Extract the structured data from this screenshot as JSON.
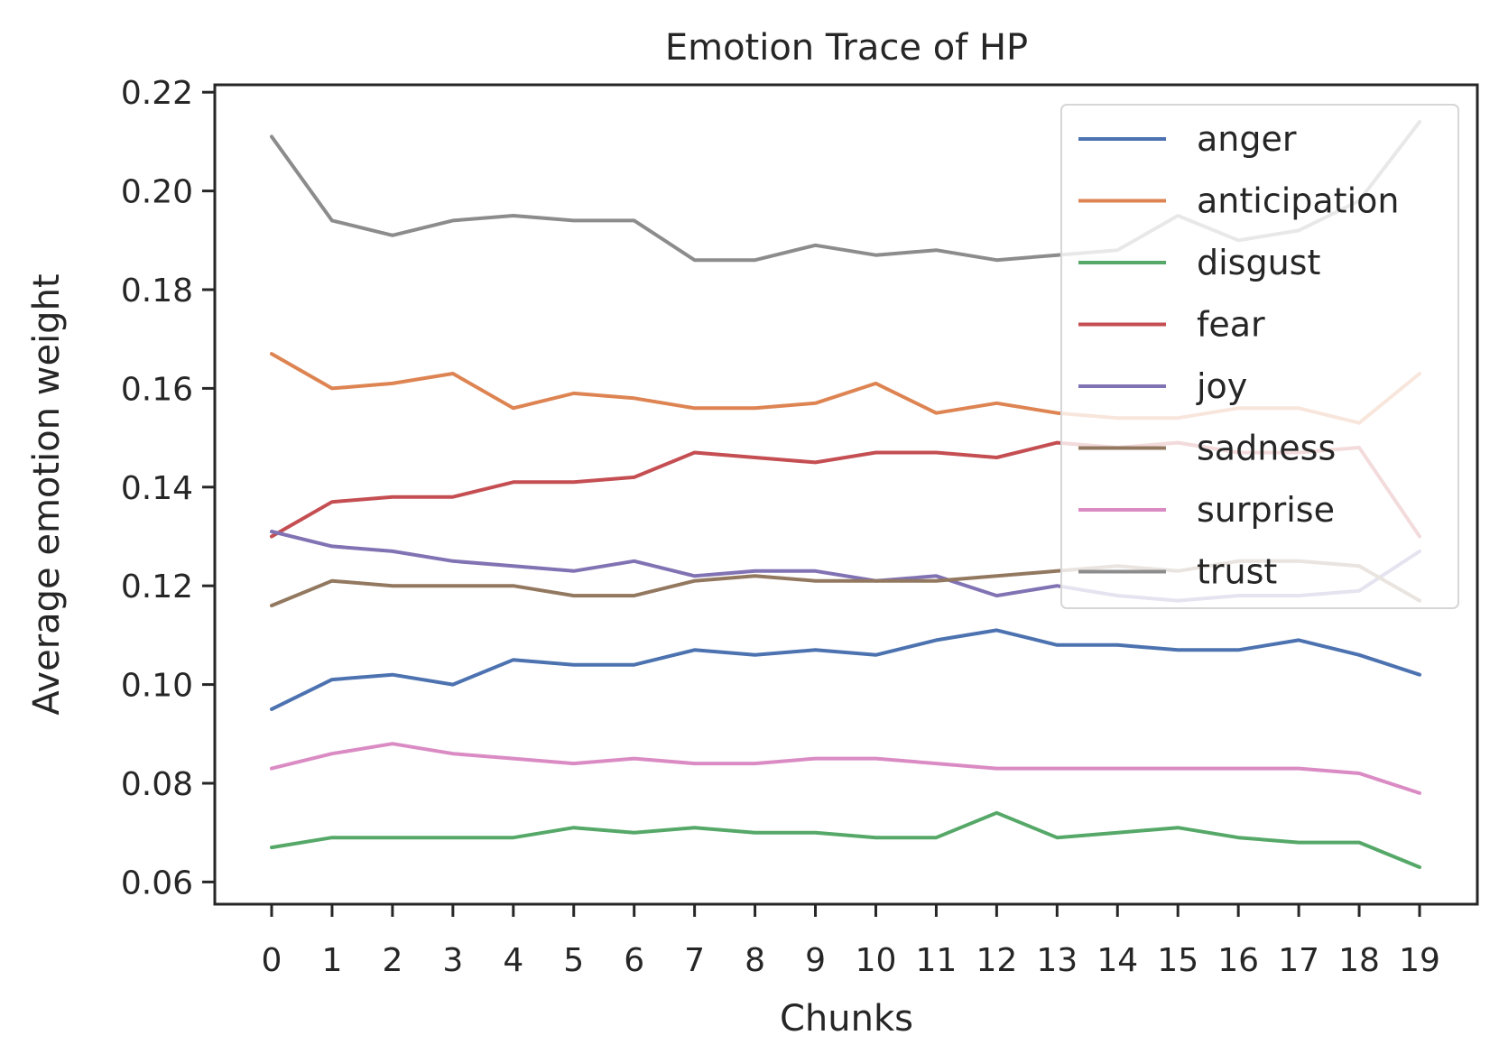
{
  "chart_data": {
    "type": "line",
    "title": "Emotion Trace of HP",
    "xlabel": "Chunks",
    "ylabel": "Average emotion weight",
    "x": [
      0,
      1,
      2,
      3,
      4,
      5,
      6,
      7,
      8,
      9,
      10,
      11,
      12,
      13,
      14,
      15,
      16,
      17,
      18,
      19
    ],
    "ylim": [
      0.0555,
      0.2215
    ],
    "yticks": [
      0.06,
      0.08,
      0.1,
      0.12,
      0.14,
      0.16,
      0.18,
      0.2,
      0.22
    ],
    "ytick_labels": [
      "0.06",
      "0.08",
      "0.10",
      "0.12",
      "0.14",
      "0.16",
      "0.18",
      "0.20",
      "0.22"
    ],
    "grid": false,
    "legend_position": "top-right",
    "series": [
      {
        "name": "anger",
        "color": "#4c72b0",
        "values": [
          0.095,
          0.101,
          0.102,
          0.1,
          0.105,
          0.104,
          0.104,
          0.107,
          0.106,
          0.107,
          0.106,
          0.109,
          0.111,
          0.108,
          0.108,
          0.107,
          0.107,
          0.109,
          0.106,
          0.102
        ]
      },
      {
        "name": "anticipation",
        "color": "#dd8452",
        "values": [
          0.167,
          0.16,
          0.161,
          0.163,
          0.156,
          0.159,
          0.158,
          0.156,
          0.156,
          0.157,
          0.161,
          0.155,
          0.157,
          0.155,
          0.154,
          0.154,
          0.156,
          0.156,
          0.153,
          0.163
        ]
      },
      {
        "name": "disgust",
        "color": "#55a868",
        "values": [
          0.067,
          0.069,
          0.069,
          0.069,
          0.069,
          0.071,
          0.07,
          0.071,
          0.07,
          0.07,
          0.069,
          0.069,
          0.074,
          0.069,
          0.07,
          0.071,
          0.069,
          0.068,
          0.068,
          0.063
        ]
      },
      {
        "name": "fear",
        "color": "#c44e52",
        "values": [
          0.13,
          0.137,
          0.138,
          0.138,
          0.141,
          0.141,
          0.142,
          0.147,
          0.146,
          0.145,
          0.147,
          0.147,
          0.146,
          0.149,
          0.148,
          0.149,
          0.147,
          0.147,
          0.148,
          0.13
        ]
      },
      {
        "name": "joy",
        "color": "#8172b3",
        "values": [
          0.131,
          0.128,
          0.127,
          0.125,
          0.124,
          0.123,
          0.125,
          0.122,
          0.123,
          0.123,
          0.121,
          0.122,
          0.118,
          0.12,
          0.118,
          0.117,
          0.118,
          0.118,
          0.119,
          0.127
        ]
      },
      {
        "name": "sadness",
        "color": "#937860",
        "values": [
          0.116,
          0.121,
          0.12,
          0.12,
          0.12,
          0.118,
          0.118,
          0.121,
          0.122,
          0.121,
          0.121,
          0.121,
          0.122,
          0.123,
          0.124,
          0.123,
          0.125,
          0.125,
          0.124,
          0.117
        ]
      },
      {
        "name": "surprise",
        "color": "#da8bc3",
        "values": [
          0.083,
          0.086,
          0.088,
          0.086,
          0.085,
          0.084,
          0.085,
          0.084,
          0.084,
          0.085,
          0.085,
          0.084,
          0.083,
          0.083,
          0.083,
          0.083,
          0.083,
          0.083,
          0.082,
          0.078
        ]
      },
      {
        "name": "trust",
        "color": "#8c8c8c",
        "values": [
          0.211,
          0.194,
          0.191,
          0.194,
          0.195,
          0.194,
          0.194,
          0.186,
          0.186,
          0.189,
          0.187,
          0.188,
          0.186,
          0.187,
          0.188,
          0.195,
          0.19,
          0.192,
          0.198,
          0.214
        ]
      }
    ]
  }
}
